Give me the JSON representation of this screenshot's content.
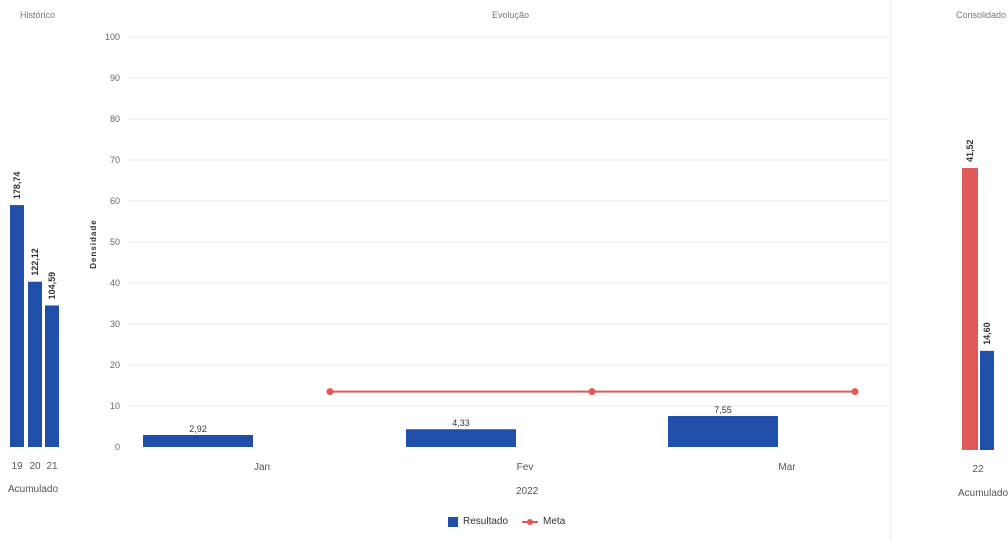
{
  "left_panel": {
    "title": "Histórico",
    "footer": "Acumulado"
  },
  "center_panel": {
    "title": "Evolução",
    "ylabel": "Densidade",
    "xlabel": "2022"
  },
  "right_panel": {
    "title": "Consolidado",
    "footer": "Acumulado"
  },
  "legend": {
    "resultado_label": "Resultado",
    "meta_label": "Meta"
  },
  "colors": {
    "bar_blue": "#1f4fa8",
    "meta_red": "#e05a5a"
  },
  "chart_data": [
    {
      "type": "bar",
      "title": "Histórico",
      "categories": [
        "19",
        "20",
        "21"
      ],
      "values": [
        178.74,
        122.12,
        104.59
      ],
      "value_labels": [
        "178,74",
        "122,12",
        "104,59"
      ],
      "xlabel": "Acumulado",
      "ylim": [
        0,
        200
      ]
    },
    {
      "type": "bar",
      "title": "Evolução",
      "categories": [
        "Jan",
        "Fev",
        "Mar"
      ],
      "xlabel": "2022",
      "ylabel": "Densidade",
      "ylim": [
        0,
        100
      ],
      "yticks": [
        0,
        10,
        20,
        30,
        40,
        50,
        60,
        70,
        80,
        90,
        100
      ],
      "grid": true,
      "legend": "bottom",
      "series": [
        {
          "name": "Resultado",
          "type": "bar",
          "values": [
            2.92,
            4.33,
            7.55
          ],
          "value_labels": [
            "2,92",
            "4,33",
            "7,55"
          ]
        },
        {
          "name": "Meta",
          "type": "line",
          "values": [
            13.5,
            13.5,
            13.5
          ]
        }
      ]
    },
    {
      "type": "bar",
      "title": "Consolidado",
      "categories": [
        "22"
      ],
      "xlabel": "Acumulado",
      "ylim": [
        0,
        60
      ],
      "series": [
        {
          "name": "Meta",
          "values": [
            41.52
          ],
          "value_labels": [
            "41,52"
          ]
        },
        {
          "name": "Resultado",
          "values": [
            14.6
          ],
          "value_labels": [
            "14,60"
          ]
        }
      ]
    }
  ]
}
